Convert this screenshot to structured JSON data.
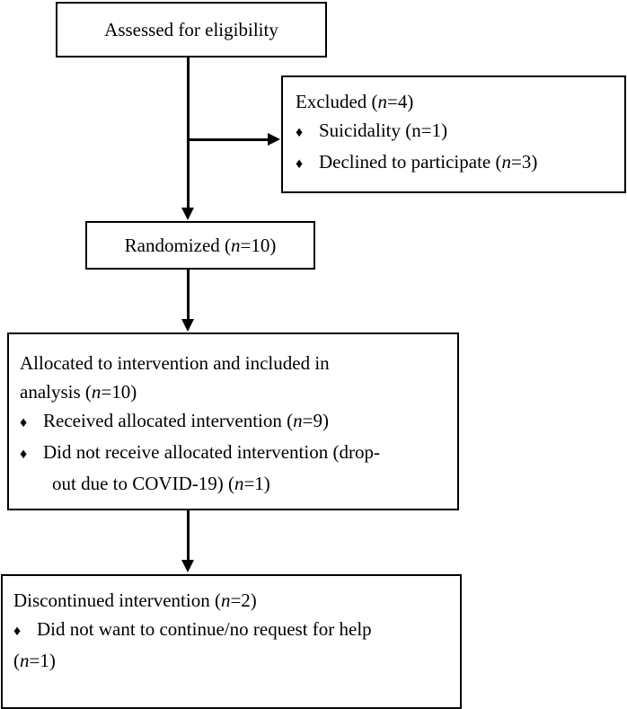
{
  "diagram": {
    "bullet": "♦",
    "box1": {
      "text": "Assessed for eligibility"
    },
    "excluded": {
      "title": "Excluded (",
      "title_n": "n",
      "title_end": "=4)",
      "items": [
        {
          "pre": "Suicidality (n=1)",
          "n": "",
          "post": ""
        },
        {
          "pre": "Declined to participate (",
          "n": "n",
          "post": "=3)"
        }
      ]
    },
    "randomized": {
      "pre": "Randomized (",
      "n": "n",
      "post": "=10)"
    },
    "allocated": {
      "line1": "Allocated to intervention and included in",
      "line2_pre": "analysis (",
      "line2_n": "n",
      "line2_post": "=10)",
      "item1_pre": "Received allocated intervention (",
      "item1_n": "n",
      "item1_post": "=9)",
      "item2_line1": "Did not receive allocated intervention (drop-",
      "item2_line2_pre": "out due to COVID-19) (",
      "item2_line2_n": "n",
      "item2_line2_post": "=1)"
    },
    "discontinued": {
      "title_pre": "Discontinued intervention (",
      "title_n": "n",
      "title_post": "=2)",
      "item1": "Did not want to continue/no request for help",
      "item1_cont_pre": "(",
      "item1_cont_n": "n",
      "item1_cont_post": "=1)"
    }
  }
}
